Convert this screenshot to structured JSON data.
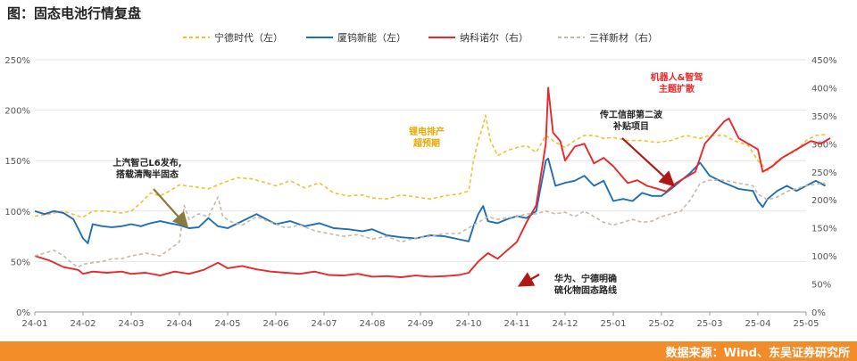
{
  "title": "图：固态电池行情复盘",
  "source": "数据来源：Wind、东吴证券研究所",
  "chart_data": {
    "type": "line",
    "x_ticks": [
      "24-01",
      "24-02",
      "24-03",
      "24-04",
      "24-05",
      "24-06",
      "24-07",
      "24-08",
      "24-09",
      "24-10",
      "24-11",
      "24-12",
      "25-01",
      "25-02",
      "25-03",
      "25-04",
      "25-05"
    ],
    "y_left": {
      "ticks": [
        "0%",
        "50%",
        "100%",
        "150%",
        "200%",
        "250%"
      ],
      "range": [
        0,
        250
      ]
    },
    "y_right": {
      "ticks": [
        "0%",
        "50%",
        "100%",
        "150%",
        "200%",
        "250%",
        "300%",
        "350%",
        "400%",
        "450%"
      ],
      "range": [
        0,
        450
      ]
    },
    "series": [
      {
        "name": "宁德时代（左）",
        "axis": "left",
        "color": "#f2c12e",
        "dash": true,
        "values": [
          [
            0,
            95
          ],
          [
            0.3,
            97
          ],
          [
            0.6,
            100
          ],
          [
            0.9,
            95
          ],
          [
            1,
            94
          ],
          [
            1.2,
            100
          ],
          [
            1.5,
            100
          ],
          [
            1.8,
            98
          ],
          [
            2,
            100
          ],
          [
            2.2,
            108
          ],
          [
            2.4,
            118
          ],
          [
            2.6,
            115
          ],
          [
            2.8,
            120
          ],
          [
            3,
            126
          ],
          [
            3.3,
            124
          ],
          [
            3.6,
            122
          ],
          [
            3.9,
            128
          ],
          [
            4.2,
            133
          ],
          [
            4.5,
            132
          ],
          [
            4.8,
            128
          ],
          [
            5,
            125
          ],
          [
            5.3,
            130
          ],
          [
            5.6,
            123
          ],
          [
            5.9,
            128
          ],
          [
            6.2,
            118
          ],
          [
            6.5,
            115
          ],
          [
            6.8,
            116
          ],
          [
            7,
            113
          ],
          [
            7.3,
            112
          ],
          [
            7.6,
            116
          ],
          [
            7.9,
            114
          ],
          [
            8.2,
            112
          ],
          [
            8.5,
            115
          ],
          [
            8.8,
            117
          ],
          [
            9,
            120
          ],
          [
            9.1,
            150
          ],
          [
            9.2,
            170
          ],
          [
            9.3,
            185
          ],
          [
            9.35,
            195
          ],
          [
            9.45,
            170
          ],
          [
            9.6,
            155
          ],
          [
            9.8,
            160
          ],
          [
            10,
            163
          ],
          [
            10.2,
            165
          ],
          [
            10.4,
            158
          ],
          [
            10.6,
            175
          ],
          [
            10.8,
            168
          ],
          [
            11,
            163
          ],
          [
            11.2,
            170
          ],
          [
            11.4,
            175
          ],
          [
            11.6,
            175
          ],
          [
            11.8,
            172
          ],
          [
            12,
            173
          ],
          [
            12.3,
            170
          ],
          [
            12.6,
            170
          ],
          [
            12.9,
            168
          ],
          [
            13.2,
            170
          ],
          [
            13.5,
            175
          ],
          [
            13.8,
            172
          ],
          [
            14,
            175
          ],
          [
            14.3,
            175
          ],
          [
            14.5,
            170
          ],
          [
            14.8,
            165
          ],
          [
            15,
            150
          ],
          [
            15.2,
            140
          ],
          [
            15.4,
            150
          ],
          [
            15.6,
            155
          ],
          [
            15.8,
            160
          ],
          [
            16,
            170
          ],
          [
            16.2,
            175
          ],
          [
            16.4,
            176
          ]
        ]
      },
      {
        "name": "厦钨新能（左）",
        "axis": "left",
        "color": "#1f6fb4",
        "dash": false,
        "values": [
          [
            0,
            100
          ],
          [
            0.2,
            97
          ],
          [
            0.4,
            100
          ],
          [
            0.6,
            98
          ],
          [
            0.8,
            92
          ],
          [
            1,
            73
          ],
          [
            1.1,
            68
          ],
          [
            1.2,
            87
          ],
          [
            1.4,
            85
          ],
          [
            1.6,
            84
          ],
          [
            1.8,
            85
          ],
          [
            2,
            87
          ],
          [
            2.2,
            85
          ],
          [
            2.4,
            88
          ],
          [
            2.6,
            90
          ],
          [
            2.8,
            88
          ],
          [
            3,
            86
          ],
          [
            3.2,
            83
          ],
          [
            3.4,
            84
          ],
          [
            3.6,
            93
          ],
          [
            3.8,
            85
          ],
          [
            4,
            83
          ],
          [
            4.3,
            90
          ],
          [
            4.6,
            97
          ],
          [
            4.8,
            92
          ],
          [
            5,
            87
          ],
          [
            5.3,
            90
          ],
          [
            5.6,
            85
          ],
          [
            5.9,
            88
          ],
          [
            6.2,
            83
          ],
          [
            6.5,
            82
          ],
          [
            6.8,
            80
          ],
          [
            7,
            82
          ],
          [
            7.3,
            76
          ],
          [
            7.6,
            74
          ],
          [
            7.9,
            73
          ],
          [
            8.2,
            76
          ],
          [
            8.5,
            75
          ],
          [
            8.8,
            72
          ],
          [
            9,
            70
          ],
          [
            9.1,
            85
          ],
          [
            9.2,
            97
          ],
          [
            9.3,
            105
          ],
          [
            9.4,
            90
          ],
          [
            9.6,
            88
          ],
          [
            9.8,
            92
          ],
          [
            10,
            95
          ],
          [
            10.2,
            93
          ],
          [
            10.4,
            100
          ],
          [
            10.6,
            150
          ],
          [
            10.65,
            152
          ],
          [
            10.8,
            125
          ],
          [
            11,
            128
          ],
          [
            11.2,
            130
          ],
          [
            11.4,
            135
          ],
          [
            11.6,
            125
          ],
          [
            11.8,
            130
          ],
          [
            12,
            110
          ],
          [
            12.2,
            112
          ],
          [
            12.4,
            110
          ],
          [
            12.6,
            118
          ],
          [
            12.8,
            115
          ],
          [
            13,
            115
          ],
          [
            13.2,
            122
          ],
          [
            13.4,
            130
          ],
          [
            13.6,
            138
          ],
          [
            13.8,
            148
          ],
          [
            14,
            135
          ],
          [
            14.3,
            128
          ],
          [
            14.6,
            122
          ],
          [
            14.9,
            120
          ],
          [
            15,
            110
          ],
          [
            15.1,
            104
          ],
          [
            15.2,
            112
          ],
          [
            15.4,
            120
          ],
          [
            15.6,
            125
          ],
          [
            15.8,
            120
          ],
          [
            16,
            125
          ],
          [
            16.2,
            130
          ],
          [
            16.4,
            125
          ]
        ]
      },
      {
        "name": "纳科诺尔（右）",
        "axis": "right",
        "color": "#e8282b",
        "dash": false,
        "values": [
          [
            0,
            100
          ],
          [
            0.3,
            92
          ],
          [
            0.6,
            80
          ],
          [
            0.9,
            75
          ],
          [
            1,
            68
          ],
          [
            1.2,
            72
          ],
          [
            1.5,
            70
          ],
          [
            1.8,
            72
          ],
          [
            2,
            68
          ],
          [
            2.3,
            70
          ],
          [
            2.6,
            65
          ],
          [
            2.9,
            72
          ],
          [
            3.2,
            68
          ],
          [
            3.5,
            75
          ],
          [
            3.8,
            88
          ],
          [
            4,
            78
          ],
          [
            4.3,
            82
          ],
          [
            4.6,
            76
          ],
          [
            4.9,
            72
          ],
          [
            5.2,
            70
          ],
          [
            5.5,
            68
          ],
          [
            5.8,
            72
          ],
          [
            6.1,
            66
          ],
          [
            6.4,
            65
          ],
          [
            6.7,
            68
          ],
          [
            7,
            63
          ],
          [
            7.3,
            64
          ],
          [
            7.6,
            62
          ],
          [
            7.9,
            65
          ],
          [
            8.2,
            63
          ],
          [
            8.5,
            64
          ],
          [
            8.8,
            66
          ],
          [
            9,
            70
          ],
          [
            9.2,
            90
          ],
          [
            9.4,
            105
          ],
          [
            9.6,
            95
          ],
          [
            9.8,
            110
          ],
          [
            10,
            125
          ],
          [
            10.2,
            160
          ],
          [
            10.4,
            190
          ],
          [
            10.6,
            300
          ],
          [
            10.65,
            400
          ],
          [
            10.75,
            320
          ],
          [
            10.9,
            305
          ],
          [
            11,
            270
          ],
          [
            11.2,
            295
          ],
          [
            11.4,
            300
          ],
          [
            11.6,
            265
          ],
          [
            11.8,
            275
          ],
          [
            12,
            260
          ],
          [
            12.2,
            240
          ],
          [
            12.3,
            230
          ],
          [
            12.5,
            235
          ],
          [
            12.7,
            225
          ],
          [
            12.9,
            220
          ],
          [
            13.1,
            215
          ],
          [
            13.3,
            230
          ],
          [
            13.5,
            240
          ],
          [
            13.7,
            250
          ],
          [
            13.9,
            300
          ],
          [
            14.1,
            320
          ],
          [
            14.3,
            340
          ],
          [
            14.4,
            345
          ],
          [
            14.6,
            310
          ],
          [
            14.8,
            300
          ],
          [
            15,
            290
          ],
          [
            15.1,
            250
          ],
          [
            15.3,
            260
          ],
          [
            15.5,
            275
          ],
          [
            15.7,
            285
          ],
          [
            15.9,
            295
          ],
          [
            16.1,
            305
          ],
          [
            16.3,
            300
          ],
          [
            16.5,
            310
          ]
        ]
      },
      {
        "name": "三祥新材（右）",
        "axis": "right",
        "color": "#c8b8a8",
        "dash": true,
        "values": [
          [
            0,
            100
          ],
          [
            0.2,
            105
          ],
          [
            0.4,
            110
          ],
          [
            0.6,
            100
          ],
          [
            0.8,
            85
          ],
          [
            0.9,
            80
          ],
          [
            1,
            85
          ],
          [
            1.2,
            88
          ],
          [
            1.4,
            90
          ],
          [
            1.6,
            95
          ],
          [
            1.8,
            95
          ],
          [
            2,
            100
          ],
          [
            2.3,
            105
          ],
          [
            2.6,
            100
          ],
          [
            2.8,
            112
          ],
          [
            3,
            125
          ],
          [
            3.1,
            190
          ],
          [
            3.2,
            165
          ],
          [
            3.4,
            175
          ],
          [
            3.6,
            170
          ],
          [
            3.8,
            205
          ],
          [
            3.9,
            170
          ],
          [
            4.1,
            160
          ],
          [
            4.3,
            155
          ],
          [
            4.6,
            170
          ],
          [
            4.9,
            160
          ],
          [
            5.2,
            150
          ],
          [
            5.5,
            155
          ],
          [
            5.8,
            145
          ],
          [
            6.1,
            140
          ],
          [
            6.4,
            135
          ],
          [
            6.7,
            138
          ],
          [
            7,
            130
          ],
          [
            7.3,
            135
          ],
          [
            7.6,
            125
          ],
          [
            7.9,
            132
          ],
          [
            8.2,
            135
          ],
          [
            8.5,
            140
          ],
          [
            8.8,
            140
          ],
          [
            9,
            150
          ],
          [
            9.2,
            160
          ],
          [
            9.4,
            170
          ],
          [
            9.6,
            165
          ],
          [
            9.8,
            168
          ],
          [
            10,
            170
          ],
          [
            10.2,
            175
          ],
          [
            10.4,
            175
          ],
          [
            10.6,
            180
          ],
          [
            10.8,
            175
          ],
          [
            11,
            178
          ],
          [
            11.2,
            170
          ],
          [
            11.4,
            180
          ],
          [
            11.6,
            170
          ],
          [
            11.8,
            160
          ],
          [
            12,
            155
          ],
          [
            12.2,
            160
          ],
          [
            12.4,
            165
          ],
          [
            12.6,
            160
          ],
          [
            12.8,
            162
          ],
          [
            13,
            170
          ],
          [
            13.2,
            175
          ],
          [
            13.4,
            180
          ],
          [
            13.6,
            200
          ],
          [
            13.8,
            230
          ],
          [
            14,
            235
          ],
          [
            14.3,
            235
          ],
          [
            14.6,
            230
          ],
          [
            14.9,
            225
          ],
          [
            15,
            210
          ],
          [
            15.2,
            200
          ],
          [
            15.4,
            205
          ],
          [
            15.6,
            215
          ],
          [
            15.8,
            220
          ],
          [
            16,
            225
          ],
          [
            16.2,
            228
          ],
          [
            16.4,
            230
          ]
        ]
      }
    ],
    "annotations": [
      {
        "lines": [
          "上汽智己L6发布,",
          "搭载清陶半固态"
        ],
        "color": "#222222",
        "arrow_color": "#8a7a40",
        "arrow_to": [
          2.8,
          95
        ]
      },
      {
        "lines": [
          "锂电排产",
          "超预期"
        ],
        "color": "#e8a800"
      },
      {
        "lines": [
          "华为、宁德明确",
          "硫化物固态路线"
        ],
        "color": "#222222",
        "arrow_color": "#b01818",
        "arrow_to": [
          10.05,
          55
        ]
      },
      {
        "lines": [
          "传工信部第二波",
          "补贴项目"
        ],
        "color": "#222222",
        "arrow_color": "#b01818",
        "arrow_to": [
          13.0,
          128
        ]
      },
      {
        "lines": [
          "机器人&智驾",
          "主题扩散"
        ],
        "color": "#e8282b"
      }
    ]
  }
}
